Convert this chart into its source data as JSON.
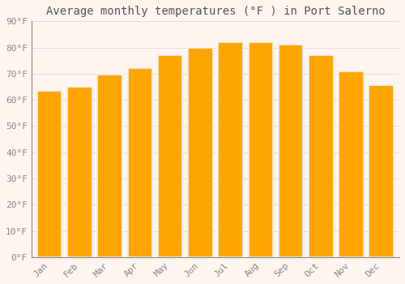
{
  "title": "Average monthly temperatures (°F ) in Port Salerno",
  "months": [
    "Jan",
    "Feb",
    "Mar",
    "Apr",
    "May",
    "Jun",
    "Jul",
    "Aug",
    "Sep",
    "Oct",
    "Nov",
    "Dec"
  ],
  "values": [
    63.5,
    65.0,
    69.5,
    72.0,
    77.0,
    80.0,
    82.0,
    82.0,
    81.0,
    77.0,
    71.0,
    65.5
  ],
  "bar_color": "#FFA500",
  "bar_edge_color": "#F0F0F0",
  "background_color": "#FFF5F0",
  "grid_color": "#DDDDDD",
  "ylim": [
    0,
    90
  ],
  "yticks": [
    0,
    10,
    20,
    30,
    40,
    50,
    60,
    70,
    80,
    90
  ],
  "ytick_labels": [
    "0°F",
    "10°F",
    "20°F",
    "30°F",
    "40°F",
    "50°F",
    "60°F",
    "70°F",
    "80°F",
    "90°F"
  ],
  "title_fontsize": 10,
  "tick_fontsize": 8,
  "tick_color": "#888888",
  "font_family": "monospace",
  "bar_width": 0.82
}
